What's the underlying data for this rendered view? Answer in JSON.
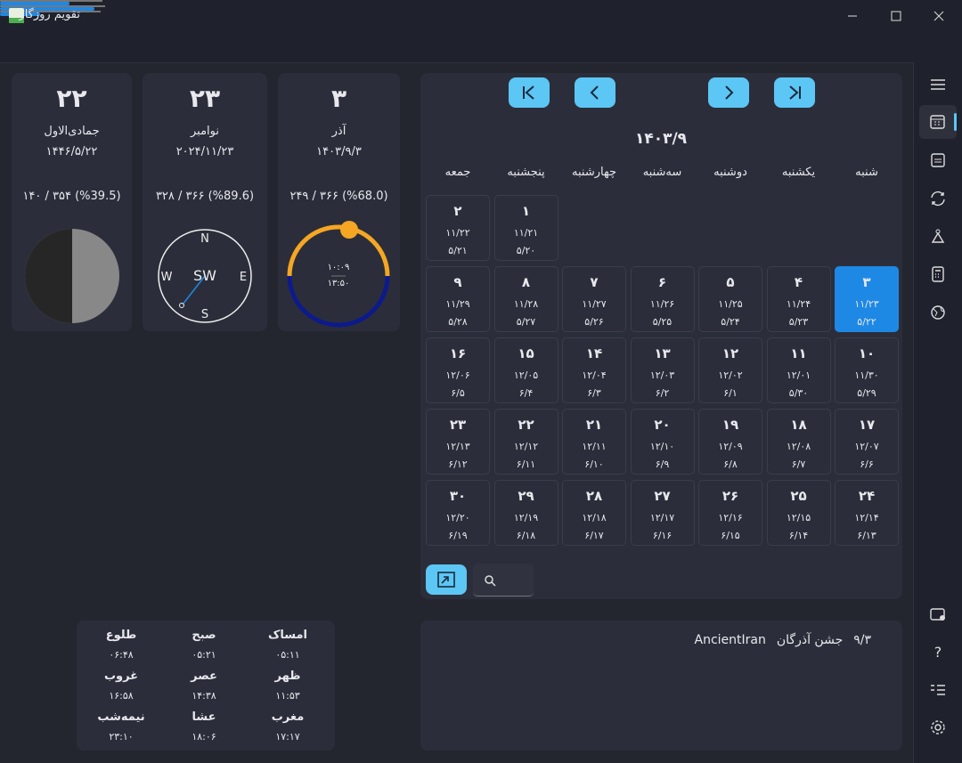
{
  "window": {
    "title": "تقویم روزگار"
  },
  "cards": [
    {
      "day": "۳",
      "month": "آذر",
      "date": "۱۴۰۳/۹/۳",
      "stats": "۲۴۹ / ۳۶۶ (%68.0)",
      "progress": 68.0
    },
    {
      "day": "۲۳",
      "month": "نوامبر",
      "date": "۲۰۲۴/۱۱/۲۳",
      "stats": "۳۲۸ / ۳۶۶ (%89.6)",
      "progress": 89.6
    },
    {
      "day": "۲۲",
      "month": "جمادی‌الاول",
      "date": "۱۴۴۶/۵/۲۲",
      "stats": "۱۴۰ / ۳۵۴ (%39.5)",
      "progress": 39.5
    }
  ],
  "sun_clock": [
    "۱۰:۰۹",
    "۱۳:۵۰"
  ],
  "compass": {
    "labels": [
      "N",
      "E",
      "S",
      "W"
    ],
    "direction": "SW"
  },
  "calendar": {
    "month": "۱۴۰۳/۹",
    "weekdays": [
      "شنبه",
      "یکشنبه",
      "دوشنبه",
      "سه‌شنبه",
      "چهارشنبه",
      "پنجشنبه",
      "جمعه"
    ],
    "days": [
      {
        "day": "۱",
        "gregorian": "۱۱/۲۱",
        "hijri": "۵/۲۰"
      },
      {
        "day": "۲",
        "gregorian": "۱۱/۲۲",
        "hijri": "۵/۲۱"
      },
      {
        "day": "۳",
        "gregorian": "۱۱/۲۳",
        "hijri": "۵/۲۲",
        "selected": true
      },
      {
        "day": "۴",
        "gregorian": "۱۱/۲۴",
        "hijri": "۵/۲۳"
      },
      {
        "day": "۵",
        "gregorian": "۱۱/۲۵",
        "hijri": "۵/۲۴"
      },
      {
        "day": "۶",
        "gregorian": "۱۱/۲۶",
        "hijri": "۵/۲۵"
      },
      {
        "day": "۷",
        "gregorian": "۱۱/۲۷",
        "hijri": "۵/۲۶"
      },
      {
        "day": "۸",
        "gregorian": "۱۱/۲۸",
        "hijri": "۵/۲۷"
      },
      {
        "day": "۹",
        "gregorian": "۱۱/۲۹",
        "hijri": "۵/۲۸"
      },
      {
        "day": "۱۰",
        "gregorian": "۱۱/۳۰",
        "hijri": "۵/۲۹"
      },
      {
        "day": "۱۱",
        "gregorian": "۱۲/۰۱",
        "hijri": "۵/۳۰"
      },
      {
        "day": "۱۲",
        "gregorian": "۱۲/۰۲",
        "hijri": "۶/۱"
      },
      {
        "day": "۱۳",
        "gregorian": "۱۲/۰۳",
        "hijri": "۶/۲"
      },
      {
        "day": "۱۴",
        "gregorian": "۱۲/۰۴",
        "hijri": "۶/۳"
      },
      {
        "day": "۱۵",
        "gregorian": "۱۲/۰۵",
        "hijri": "۶/۴"
      },
      {
        "day": "۱۶",
        "gregorian": "۱۲/۰۶",
        "hijri": "۶/۵"
      },
      {
        "day": "۱۷",
        "gregorian": "۱۲/۰۷",
        "hijri": "۶/۶"
      },
      {
        "day": "۱۸",
        "gregorian": "۱۲/۰۸",
        "hijri": "۶/۷"
      },
      {
        "day": "۱۹",
        "gregorian": "۱۲/۰۹",
        "hijri": "۶/۸"
      },
      {
        "day": "۲۰",
        "gregorian": "۱۲/۱۰",
        "hijri": "۶/۹"
      },
      {
        "day": "۲۱",
        "gregorian": "۱۲/۱۱",
        "hijri": "۶/۱۰"
      },
      {
        "day": "۲۲",
        "gregorian": "۱۲/۱۲",
        "hijri": "۶/۱۱"
      },
      {
        "day": "۲۳",
        "gregorian": "۱۲/۱۳",
        "hijri": "۶/۱۲"
      },
      {
        "day": "۲۴",
        "gregorian": "۱۲/۱۴",
        "hijri": "۶/۱۳"
      },
      {
        "day": "۲۵",
        "gregorian": "۱۲/۱۵",
        "hijri": "۶/۱۴"
      },
      {
        "day": "۲۶",
        "gregorian": "۱۲/۱۶",
        "hijri": "۶/۱۵"
      },
      {
        "day": "۲۷",
        "gregorian": "۱۲/۱۷",
        "hijri": "۶/۱۶"
      },
      {
        "day": "۲۸",
        "gregorian": "۱۲/۱۸",
        "hijri": "۶/۱۷"
      },
      {
        "day": "۲۹",
        "gregorian": "۱۲/۱۹",
        "hijri": "۶/۱۸"
      },
      {
        "day": "۳۰",
        "gregorian": "۱۲/۲۰",
        "hijri": "۶/۱۹"
      }
    ]
  },
  "prayer_times": [
    {
      "name": "امساک",
      "time": "۰۵:۱۱"
    },
    {
      "name": "صبح",
      "time": "۰۵:۲۱"
    },
    {
      "name": "طلوع",
      "time": "۰۶:۴۸"
    },
    {
      "name": "ظهر",
      "time": "۱۱:۵۳"
    },
    {
      "name": "عصر",
      "time": "۱۴:۳۸"
    },
    {
      "name": "غروب",
      "time": "۱۶:۵۸"
    },
    {
      "name": "مغرب",
      "time": "۱۷:۱۷"
    },
    {
      "name": "عشا",
      "time": "۱۸:۰۶"
    },
    {
      "name": "نیمه‌شب",
      "time": "۲۳:۱۰"
    }
  ],
  "events": [
    {
      "date": "۹/۳",
      "title": "جشن آذرگان",
      "source": "AncientIran"
    }
  ]
}
